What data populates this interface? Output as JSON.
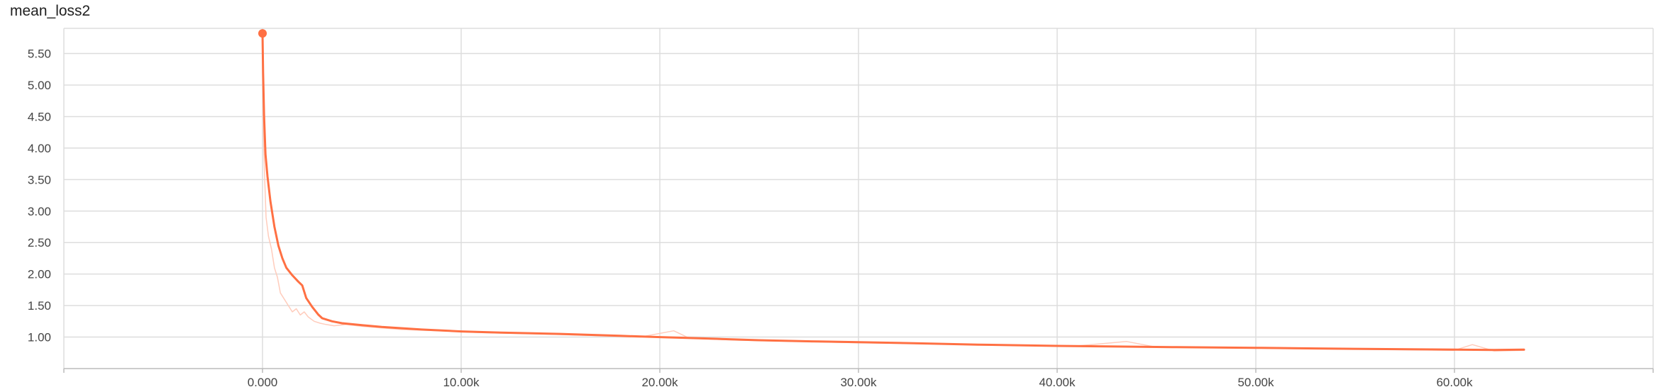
{
  "chart_data": {
    "type": "line",
    "title": "mean_loss2",
    "xlabel": "",
    "ylabel": "",
    "xlim": [
      -10000,
      70000
    ],
    "ylim": [
      0.5,
      5.9
    ],
    "grid": true,
    "x_ticks": [
      0,
      10000,
      20000,
      30000,
      40000,
      50000,
      60000
    ],
    "x_tick_labels": [
      "0.000",
      "10.00k",
      "20.00k",
      "30.00k",
      "40.00k",
      "50.00k",
      "60.00k"
    ],
    "y_ticks": [
      1.0,
      1.5,
      2.0,
      2.5,
      3.0,
      3.5,
      4.0,
      4.5,
      5.0,
      5.5
    ],
    "y_tick_labels": [
      "1.00",
      "1.50",
      "2.00",
      "2.50",
      "3.00",
      "3.50",
      "4.00",
      "4.50",
      "5.00",
      "5.50"
    ],
    "colors": {
      "smoothed": "#ff7043",
      "raw": "#ffccbc",
      "grid": "#dddddd"
    },
    "series": [
      {
        "style": "smoothed",
        "x": [
          0,
          30,
          80,
          150,
          250,
          400,
          600,
          800,
          1000,
          1200,
          1500,
          1800,
          2000,
          2200,
          2500,
          2800,
          3000,
          3500,
          4000,
          5000,
          6000,
          8000,
          10000,
          12000,
          15000,
          18000,
          20000,
          22000,
          25000,
          28000,
          30000,
          33000,
          36000,
          40000,
          43000,
          46000,
          50000,
          53000,
          56000,
          60000,
          62000,
          63500
        ],
        "y": [
          5.82,
          5.2,
          4.5,
          3.9,
          3.55,
          3.15,
          2.75,
          2.45,
          2.25,
          2.1,
          1.98,
          1.88,
          1.82,
          1.62,
          1.48,
          1.36,
          1.3,
          1.25,
          1.22,
          1.19,
          1.16,
          1.12,
          1.09,
          1.07,
          1.05,
          1.02,
          1.0,
          0.98,
          0.95,
          0.93,
          0.92,
          0.9,
          0.88,
          0.86,
          0.85,
          0.84,
          0.83,
          0.82,
          0.81,
          0.8,
          0.795,
          0.8
        ]
      },
      {
        "style": "raw",
        "x": [
          0,
          40,
          100,
          180,
          300,
          450,
          600,
          750,
          900,
          1100,
          1300,
          1500,
          1700,
          1900,
          2100,
          2300,
          2600,
          2900,
          3200,
          3600,
          4200,
          5000,
          7000,
          9000,
          11000,
          14000,
          17000,
          19000,
          20700,
          21500,
          24000,
          27000,
          30000,
          34000,
          38000,
          41000,
          43500,
          45000,
          48000,
          51000,
          54000,
          57000,
          60000,
          60900,
          62000,
          63500
        ],
        "y": [
          5.8,
          4.3,
          3.6,
          2.9,
          2.6,
          2.4,
          2.1,
          1.95,
          1.7,
          1.6,
          1.5,
          1.4,
          1.45,
          1.35,
          1.4,
          1.32,
          1.25,
          1.22,
          1.2,
          1.18,
          1.2,
          1.17,
          1.12,
          1.1,
          1.07,
          1.05,
          1.02,
          1.0,
          1.1,
          0.98,
          0.95,
          0.93,
          0.91,
          0.89,
          0.87,
          0.86,
          0.93,
          0.84,
          0.83,
          0.82,
          0.81,
          0.8,
          0.79,
          0.88,
          0.78,
          0.79
        ]
      }
    ],
    "start_point": {
      "x": 0,
      "y": 5.82
    }
  }
}
